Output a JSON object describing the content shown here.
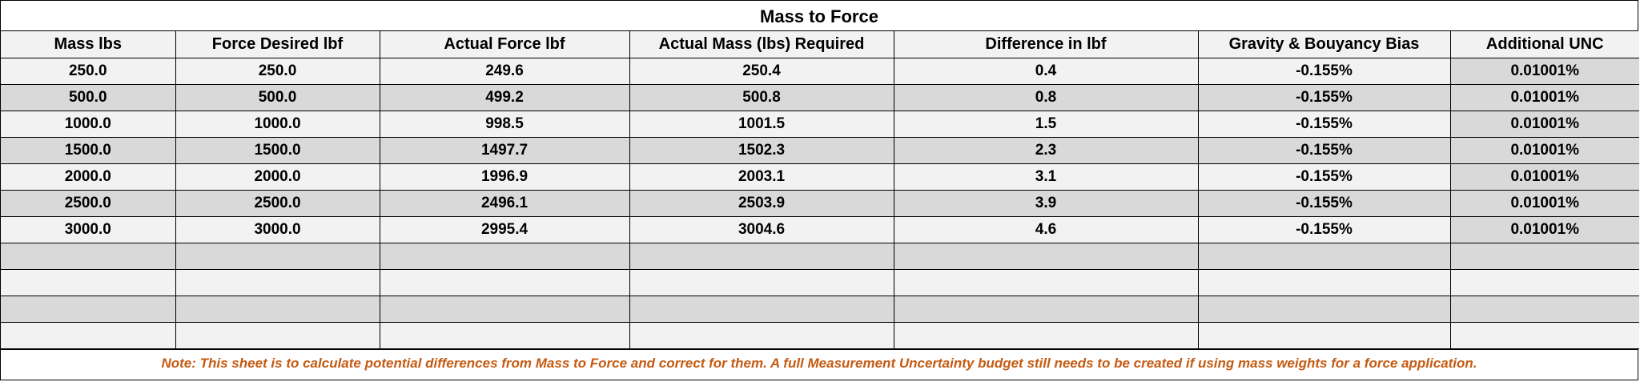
{
  "title": "Mass to Force",
  "headers": [
    "Mass lbs",
    "Force Desired lbf",
    "Actual Force lbf",
    "Actual Mass (lbs) Required",
    "Difference in lbf",
    "Gravity & Bouyancy Bias",
    "Additional UNC"
  ],
  "rows": [
    [
      "250.0",
      "250.0",
      "249.6",
      "250.4",
      "0.4",
      "-0.155%",
      "0.01001%"
    ],
    [
      "500.0",
      "500.0",
      "499.2",
      "500.8",
      "0.8",
      "-0.155%",
      "0.01001%"
    ],
    [
      "1000.0",
      "1000.0",
      "998.5",
      "1001.5",
      "1.5",
      "-0.155%",
      "0.01001%"
    ],
    [
      "1500.0",
      "1500.0",
      "1497.7",
      "1502.3",
      "2.3",
      "-0.155%",
      "0.01001%"
    ],
    [
      "2000.0",
      "2000.0",
      "1996.9",
      "2003.1",
      "3.1",
      "-0.155%",
      "0.01001%"
    ],
    [
      "2500.0",
      "2500.0",
      "2496.1",
      "2503.9",
      "3.9",
      "-0.155%",
      "0.01001%"
    ],
    [
      "3000.0",
      "3000.0",
      "2995.4",
      "3004.6",
      "4.6",
      "-0.155%",
      "0.01001%"
    ],
    [
      "",
      "",
      "",
      "",
      "",
      "",
      ""
    ],
    [
      "",
      "",
      "",
      "",
      "",
      "",
      ""
    ],
    [
      "",
      "",
      "",
      "",
      "",
      "",
      ""
    ],
    [
      "",
      "",
      "",
      "",
      "",
      "",
      ""
    ]
  ],
  "note": "Note: This sheet is to calculate potential differences from Mass to Force and correct for them. A full Measurement Uncertainty budget still needs to be created if using mass weights for a force application."
}
